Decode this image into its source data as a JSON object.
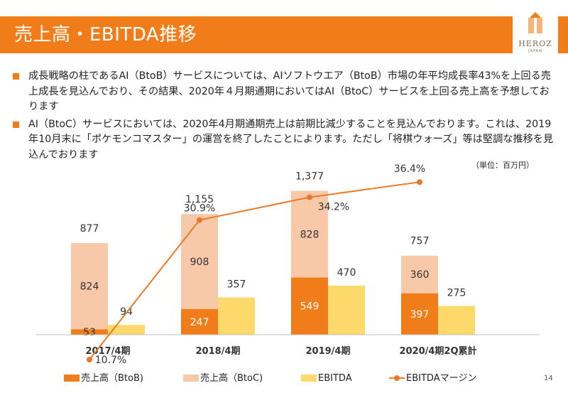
{
  "header": {
    "title": "売上高・EBITDA推移",
    "logo_text": "HEROZ",
    "logo_sub": "JAPAN"
  },
  "bullets": [
    "成長戦略の柱であるAI（BtoB）サービスについては、AIソフトウエア（BtoB）市場の年平均成長率43%を上回る売上成長を見込んでおり、その結果、2020年４月期通期においてはAI（BtoC）サービスを上回る売上高を予想しております",
    "AI（BtoC）サービスにおいては、2020年4月期通期売上は前期比減少することを見込んでおります。これは、2019年10月末に「ポケモンコマスター」の運営を終了したことによります。ただし「将棋ウォーズ」等は堅調な推移を見込んでおります"
  ],
  "unit_note": "（単位：百万円）",
  "page_number": "14",
  "colors": {
    "btob": "#f07d1a",
    "btoc": "#f8c9a8",
    "ebitda": "#fcd96a",
    "margin": "#e8782a"
  },
  "chart_data": {
    "type": "bar",
    "categories": [
      "2017/4期",
      "2018/4期",
      "2019/4期",
      "2020/4期2Q累計"
    ],
    "series": [
      {
        "name": "売上高（BtoB)",
        "values": [
          53,
          247,
          549,
          397
        ],
        "stack": "sales"
      },
      {
        "name": "売上高（BtoC)",
        "values": [
          824,
          908,
          828,
          360
        ],
        "stack": "sales"
      },
      {
        "name": "EBITDA",
        "values": [
          94,
          357,
          470,
          275
        ]
      },
      {
        "name": "EBITDAマージン",
        "type": "line",
        "values": [
          10.7,
          30.9,
          34.2,
          36.4
        ]
      }
    ],
    "totals": [
      877,
      1155,
      1377,
      757
    ],
    "total_labels": [
      "877",
      "1,155",
      "1,377",
      "757"
    ],
    "margin_labels": [
      "10.7%",
      "30.9%",
      "34.2%",
      "36.4%"
    ],
    "legend_position": "bottom"
  }
}
